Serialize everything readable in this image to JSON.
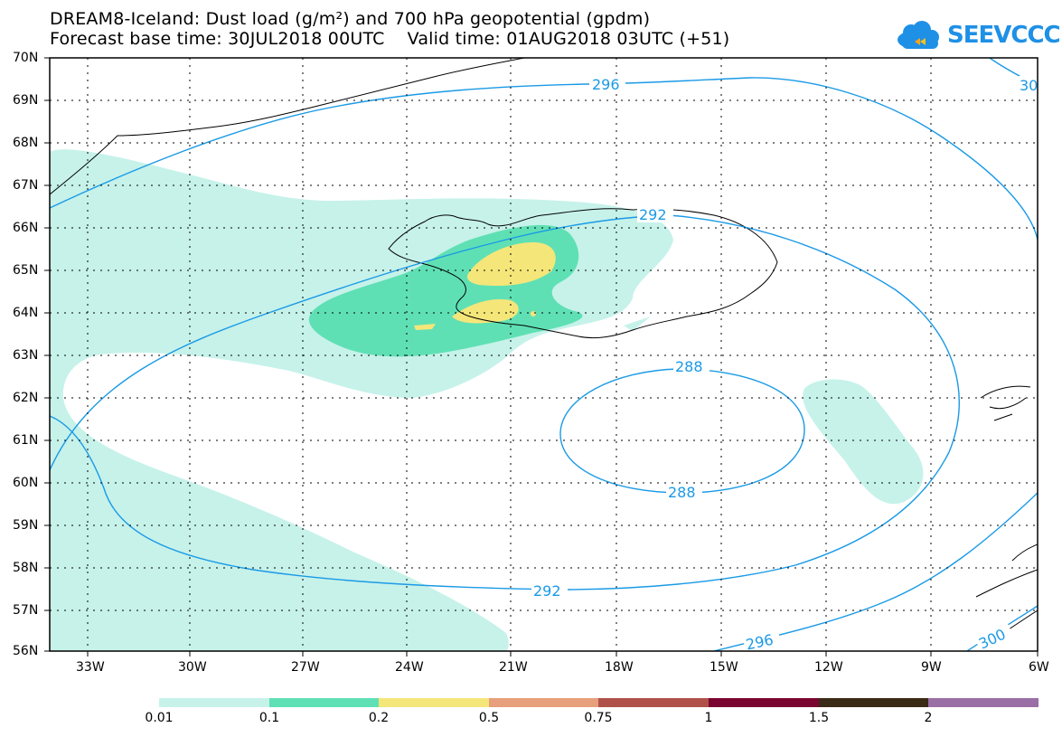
{
  "header": {
    "line1": "DREAM8-Iceland: Dust load (g/m²) and 700 hPa geopotential (gpdm)",
    "line2": "Forecast base time: 30JUL2018 00UTC    Valid time: 01AUG2018 03UTC (+51)"
  },
  "logo": {
    "text": "SEEVCCC",
    "color": "#1e90e6"
  },
  "axes": {
    "lat_labels": [
      "70N",
      "69N",
      "68N",
      "67N",
      "66N",
      "65N",
      "64N",
      "63N",
      "62N",
      "61N",
      "60N",
      "59N",
      "58N",
      "57N",
      "56N"
    ],
    "lon_labels": [
      "33W",
      "30W",
      "27W",
      "24W",
      "21W",
      "18W",
      "15W",
      "12W",
      "9W",
      "6W"
    ]
  },
  "contours": {
    "color": "#1a9ae6",
    "labels": [
      "296",
      "30",
      "292",
      "288",
      "288",
      "292",
      "296",
      "300"
    ]
  },
  "legend": {
    "colors": [
      "#c6f2ea",
      "#5fe0b4",
      "#f5e67a",
      "#e79f7c",
      "#b0524a",
      "#7a0530",
      "#3b2a16",
      "#9a6fa6"
    ],
    "labels": [
      "0.01",
      "0.1",
      "0.2",
      "0.5",
      "0.75",
      "1",
      "1.5",
      "2"
    ]
  }
}
